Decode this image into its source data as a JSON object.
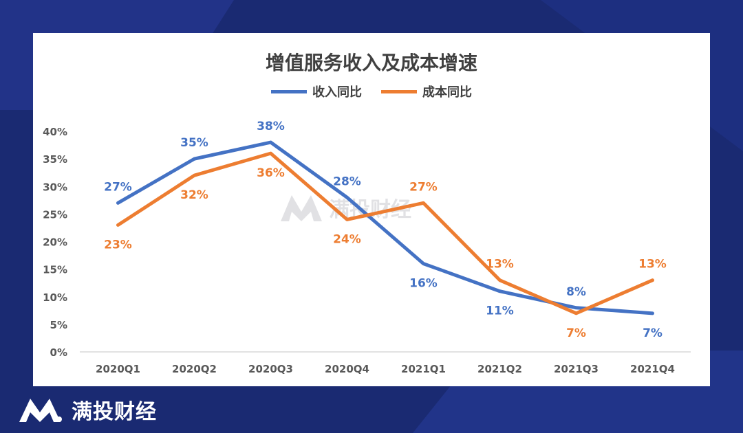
{
  "brand": {
    "logo_text": "满投财经"
  },
  "watermark": {
    "text": "满投财经"
  },
  "colors": {
    "revenue": "#4472c4",
    "cost": "#ed7d31",
    "axis": "#595959",
    "background": "#1a2a72"
  },
  "chart_data": {
    "type": "line",
    "title": "增值服务收入及成本增速",
    "categories": [
      "2020Q1",
      "2020Q2",
      "2020Q3",
      "2020Q4",
      "2021Q1",
      "2021Q2",
      "2021Q3",
      "2021Q4"
    ],
    "y_ticks": [
      "0%",
      "5%",
      "10%",
      "15%",
      "20%",
      "25%",
      "30%",
      "35%",
      "40%"
    ],
    "ylim": [
      0,
      40
    ],
    "legend_position": "top-center",
    "grid": false,
    "series": [
      {
        "name": "收入同比",
        "color": "#4472c4",
        "values": [
          27,
          35,
          38,
          28,
          16,
          11,
          8,
          7
        ],
        "labels": [
          "27%",
          "35%",
          "38%",
          "28%",
          "16%",
          "11%",
          "8%",
          "7%"
        ]
      },
      {
        "name": "成本同比",
        "color": "#ed7d31",
        "values": [
          23,
          32,
          36,
          24,
          27,
          13,
          7,
          13
        ],
        "labels": [
          "23%",
          "32%",
          "36%",
          "24%",
          "27%",
          "13%",
          "7%",
          "13%"
        ]
      }
    ]
  }
}
